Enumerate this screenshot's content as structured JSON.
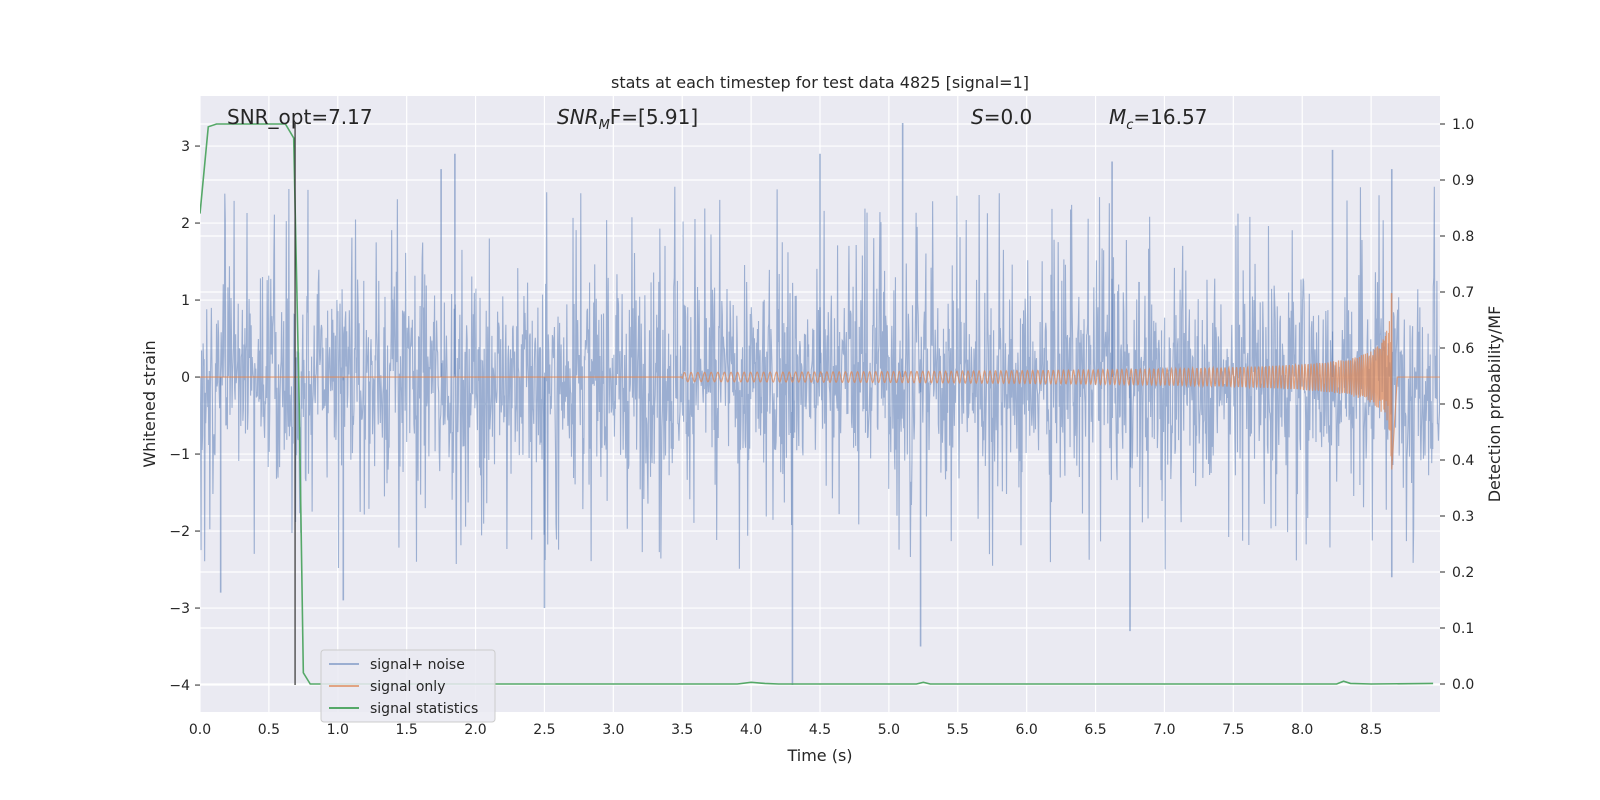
{
  "chart_data": {
    "type": "line",
    "title": "stats at each timestep for test data 4825 [signal=1]",
    "xlabel": "Time (s)",
    "ylabel_left": "Whitened strain",
    "ylabel_right": "Detection probability/MF",
    "xlim": [
      0.0,
      9.0
    ],
    "ylim_left": [
      -4.35,
      3.65
    ],
    "ylim_right": [
      -0.05,
      1.05
    ],
    "x_ticks": [
      "0.0",
      "0.5",
      "1.0",
      "1.5",
      "2.0",
      "2.5",
      "3.0",
      "3.5",
      "4.0",
      "4.5",
      "5.0",
      "5.5",
      "6.0",
      "6.5",
      "7.0",
      "7.5",
      "8.0",
      "8.5"
    ],
    "y_ticks_left": [
      "3",
      "2",
      "1",
      "0",
      "−1",
      "−2",
      "−3",
      "−4"
    ],
    "y_ticks_right": [
      "1.0",
      "0.9",
      "0.8",
      "0.7",
      "0.6",
      "0.5",
      "0.4",
      "0.3",
      "0.2",
      "0.1",
      "0.0"
    ],
    "grid": true,
    "legend_position": "lower-left",
    "annotations": [
      {
        "pre": "SNR_opt=7.17",
        "sub": "",
        "post": ""
      },
      {
        "pre": "SNR",
        "sub": "M",
        "post": "F=[5.91]",
        "italic": true
      },
      {
        "pre": "S",
        "sub": "",
        "post": "=0.0",
        "italic": true
      },
      {
        "pre": "M",
        "sub": "c",
        "post": "=16.57",
        "italic": true
      }
    ],
    "vertical_line": {
      "x": 0.69,
      "y_bottom": -4.0,
      "y_top": 3.3
    },
    "series": [
      {
        "name": "signal+ noise",
        "axis": "left",
        "color": "#4c72b0",
        "kind": "noise",
        "duration": 9.0,
        "core_amplitude": 1.15,
        "spikes": [
          {
            "x": 0.15,
            "y": -2.8
          },
          {
            "x": 1.75,
            "y": 2.7
          },
          {
            "x": 1.04,
            "y": -2.9
          },
          {
            "x": 2.5,
            "y": -3.0
          },
          {
            "x": 4.3,
            "y": -4.0
          },
          {
            "x": 4.5,
            "y": 2.9
          },
          {
            "x": 5.1,
            "y": 3.3
          },
          {
            "x": 5.23,
            "y": -3.5
          },
          {
            "x": 6.75,
            "y": -3.3
          },
          {
            "x": 8.22,
            "y": 2.95
          },
          {
            "x": 8.65,
            "y": 2.7
          },
          {
            "x": 8.65,
            "y": -2.6
          },
          {
            "x": 1.85,
            "y": 2.9
          },
          {
            "x": 6.62,
            "y": 2.8
          }
        ]
      },
      {
        "name": "signal only",
        "axis": "left",
        "color": "#dd8452",
        "kind": "chirp",
        "t_start": 3.5,
        "t_merger": 8.65,
        "peak_amplitude": 1.25,
        "ringdown_amplitude": -1.2
      },
      {
        "name": "signal statistics",
        "axis": "right",
        "color": "#55a868",
        "x": [
          0.0,
          0.06,
          0.12,
          0.3,
          0.5,
          0.62,
          0.68,
          0.72,
          0.75,
          0.8,
          1.0,
          2.0,
          3.0,
          3.9,
          4.0,
          4.1,
          4.2,
          5.0,
          5.2,
          5.25,
          5.3,
          6.0,
          7.0,
          8.0,
          8.25,
          8.3,
          8.35,
          8.5,
          8.95
        ],
        "y": [
          0.84,
          0.995,
          1.0,
          1.0,
          1.0,
          1.0,
          0.975,
          0.5,
          0.02,
          0.0,
          0.0,
          0.0,
          0.0,
          0.0,
          0.003,
          0.001,
          0.0,
          0.0,
          0.0,
          0.003,
          0.0,
          0.0,
          0.0,
          0.0,
          0.0,
          0.005,
          0.001,
          0.0,
          0.001
        ]
      }
    ]
  }
}
